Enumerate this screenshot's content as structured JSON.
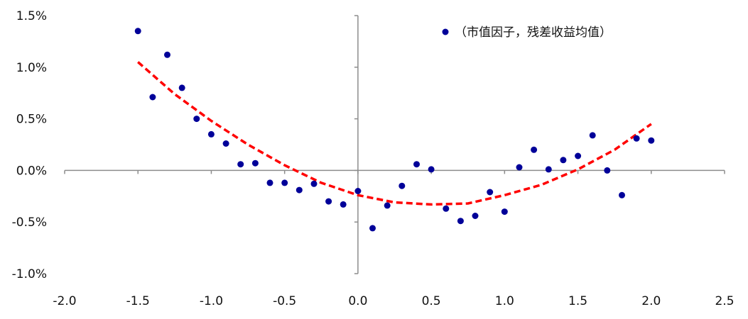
{
  "chart_data": {
    "type": "scatter",
    "xlim": [
      -2.0,
      2.5
    ],
    "ylim": [
      -1.0,
      1.5
    ],
    "x_ticks": [
      -2.0,
      -1.5,
      -1.0,
      -0.5,
      0.0,
      0.5,
      1.0,
      1.5,
      2.0,
      2.5
    ],
    "x_tick_labels": [
      "-2.0",
      "-1.5",
      "-1.0",
      "-0.5",
      "0.0",
      "0.5",
      "1.0",
      "1.5",
      "2.0",
      "2.5"
    ],
    "y_ticks": [
      -1.0,
      -0.5,
      0.0,
      0.5,
      1.0,
      1.5
    ],
    "y_tick_labels": [
      "-1.0%",
      "-0.5%",
      "0.0%",
      "0.5%",
      "1.0%",
      "1.5%"
    ],
    "grid": false,
    "legend_position": "top-right",
    "series": [
      {
        "name": "（市值因子，残差收益均值）",
        "type": "scatter",
        "color": "#000099",
        "x": [
          -1.5,
          -1.4,
          -1.3,
          -1.2,
          -1.1,
          -1.0,
          -0.9,
          -0.8,
          -0.7,
          -0.6,
          -0.5,
          -0.4,
          -0.3,
          -0.2,
          -0.1,
          0.0,
          0.1,
          0.2,
          0.3,
          0.4,
          0.5,
          0.6,
          0.7,
          0.8,
          0.9,
          1.0,
          1.1,
          1.2,
          1.3,
          1.4,
          1.5,
          1.6,
          1.7,
          1.8,
          1.9,
          2.0
        ],
        "y": [
          1.35,
          0.71,
          1.12,
          0.8,
          0.5,
          0.35,
          0.26,
          0.06,
          0.07,
          -0.12,
          -0.12,
          -0.19,
          -0.13,
          -0.3,
          -0.33,
          -0.2,
          -0.56,
          -0.34,
          -0.15,
          0.06,
          0.01,
          -0.37,
          -0.49,
          -0.44,
          -0.21,
          -0.4,
          0.03,
          0.2,
          0.01,
          0.1,
          0.14,
          0.34,
          0.0,
          -0.24,
          0.31,
          0.29
        ]
      },
      {
        "type": "line",
        "style": "dashed",
        "color": "#ff0000",
        "x": [
          -1.5,
          -1.25,
          -1.0,
          -0.75,
          -0.5,
          -0.25,
          0.0,
          0.25,
          0.5,
          0.75,
          1.0,
          1.25,
          1.5,
          1.75,
          2.0
        ],
        "y": [
          1.05,
          0.74,
          0.48,
          0.25,
          0.05,
          -0.12,
          -0.24,
          -0.31,
          -0.33,
          -0.32,
          -0.24,
          -0.14,
          0.01,
          0.2,
          0.45
        ]
      }
    ]
  }
}
